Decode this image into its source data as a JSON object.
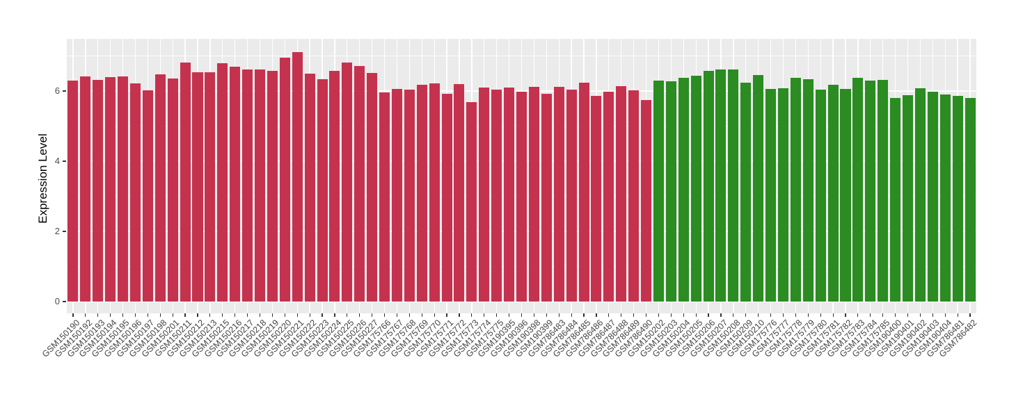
{
  "chart_data": {
    "type": "bar",
    "title": "",
    "xlabel": "",
    "ylabel": "Expression Level",
    "ylim": [
      -0.34,
      7.48
    ],
    "yticks": [
      0,
      2,
      4,
      6
    ],
    "minor_gridlines": [
      1,
      3,
      5,
      7
    ],
    "grid": true,
    "legend_position": "none",
    "panel_bg": "#EBEBEB",
    "grid_color": "#FFFFFF",
    "tick_mark_color": "#333333",
    "tick_label_color": "#444444",
    "axis_title_color": "#000000",
    "groups": [
      {
        "name": "group-1",
        "color": "#C5324E"
      },
      {
        "name": "group-2",
        "color": "#2A8C21"
      }
    ],
    "bars": [
      {
        "label": "GSM150190",
        "value": 6.29,
        "group": 0
      },
      {
        "label": "GSM150192",
        "value": 6.42,
        "group": 0
      },
      {
        "label": "GSM150193",
        "value": 6.32,
        "group": 0
      },
      {
        "label": "GSM150194",
        "value": 6.39,
        "group": 0
      },
      {
        "label": "GSM150195",
        "value": 6.42,
        "group": 0
      },
      {
        "label": "GSM150196",
        "value": 6.22,
        "group": 0
      },
      {
        "label": "GSM150197",
        "value": 6.02,
        "group": 0
      },
      {
        "label": "GSM150198",
        "value": 6.47,
        "group": 0
      },
      {
        "label": "GSM150201",
        "value": 6.35,
        "group": 0
      },
      {
        "label": "GSM150211",
        "value": 6.81,
        "group": 0
      },
      {
        "label": "GSM150212",
        "value": 6.54,
        "group": 0
      },
      {
        "label": "GSM150213",
        "value": 6.54,
        "group": 0
      },
      {
        "label": "GSM150215",
        "value": 6.79,
        "group": 0
      },
      {
        "label": "GSM150216",
        "value": 6.69,
        "group": 0
      },
      {
        "label": "GSM150217",
        "value": 6.61,
        "group": 0
      },
      {
        "label": "GSM150218",
        "value": 6.61,
        "group": 0
      },
      {
        "label": "GSM150219",
        "value": 6.57,
        "group": 0
      },
      {
        "label": "GSM150220",
        "value": 6.95,
        "group": 0
      },
      {
        "label": "GSM150221",
        "value": 7.11,
        "group": 0
      },
      {
        "label": "GSM150222",
        "value": 6.49,
        "group": 0
      },
      {
        "label": "GSM150223",
        "value": 6.33,
        "group": 0
      },
      {
        "label": "GSM150224",
        "value": 6.58,
        "group": 0
      },
      {
        "label": "GSM150225",
        "value": 6.81,
        "group": 0
      },
      {
        "label": "GSM150226",
        "value": 6.71,
        "group": 0
      },
      {
        "label": "GSM150227",
        "value": 6.51,
        "group": 0
      },
      {
        "label": "GSM175766",
        "value": 5.96,
        "group": 0
      },
      {
        "label": "GSM175767",
        "value": 6.05,
        "group": 0
      },
      {
        "label": "GSM175768",
        "value": 6.03,
        "group": 0
      },
      {
        "label": "GSM175769",
        "value": 6.17,
        "group": 0
      },
      {
        "label": "GSM175770",
        "value": 6.21,
        "group": 0
      },
      {
        "label": "GSM175771",
        "value": 5.93,
        "group": 0
      },
      {
        "label": "GSM175772",
        "value": 6.19,
        "group": 0
      },
      {
        "label": "GSM175773",
        "value": 5.69,
        "group": 0
      },
      {
        "label": "GSM175774",
        "value": 6.1,
        "group": 0
      },
      {
        "label": "GSM175775",
        "value": 6.04,
        "group": 0
      },
      {
        "label": "GSM190395",
        "value": 6.09,
        "group": 0
      },
      {
        "label": "GSM190396",
        "value": 5.99,
        "group": 0
      },
      {
        "label": "GSM190398",
        "value": 6.11,
        "group": 0
      },
      {
        "label": "GSM190399",
        "value": 5.93,
        "group": 0
      },
      {
        "label": "GSM786483",
        "value": 6.12,
        "group": 0
      },
      {
        "label": "GSM786484",
        "value": 6.03,
        "group": 0
      },
      {
        "label": "GSM786485",
        "value": 6.23,
        "group": 0
      },
      {
        "label": "GSM786486",
        "value": 5.87,
        "group": 0
      },
      {
        "label": "GSM786487",
        "value": 5.99,
        "group": 0
      },
      {
        "label": "GSM786488",
        "value": 6.14,
        "group": 0
      },
      {
        "label": "GSM786489",
        "value": 6.01,
        "group": 0
      },
      {
        "label": "GSM786490",
        "value": 5.74,
        "group": 0
      },
      {
        "label": "GSM150202",
        "value": 6.29,
        "group": 1
      },
      {
        "label": "GSM150203",
        "value": 6.27,
        "group": 1
      },
      {
        "label": "GSM150204",
        "value": 6.37,
        "group": 1
      },
      {
        "label": "GSM150205",
        "value": 6.44,
        "group": 1
      },
      {
        "label": "GSM150206",
        "value": 6.57,
        "group": 1
      },
      {
        "label": "GSM150207",
        "value": 6.62,
        "group": 1
      },
      {
        "label": "GSM150208",
        "value": 6.61,
        "group": 1
      },
      {
        "label": "GSM150209",
        "value": 6.24,
        "group": 1
      },
      {
        "label": "GSM150210",
        "value": 6.46,
        "group": 1
      },
      {
        "label": "GSM175776",
        "value": 6.05,
        "group": 1
      },
      {
        "label": "GSM175777",
        "value": 6.08,
        "group": 1
      },
      {
        "label": "GSM175778",
        "value": 6.37,
        "group": 1
      },
      {
        "label": "GSM175779",
        "value": 6.33,
        "group": 1
      },
      {
        "label": "GSM175780",
        "value": 6.03,
        "group": 1
      },
      {
        "label": "GSM175781",
        "value": 6.17,
        "group": 1
      },
      {
        "label": "GSM175782",
        "value": 6.06,
        "group": 1
      },
      {
        "label": "GSM175783",
        "value": 6.37,
        "group": 1
      },
      {
        "label": "GSM175784",
        "value": 6.29,
        "group": 1
      },
      {
        "label": "GSM175785",
        "value": 6.31,
        "group": 1
      },
      {
        "label": "GSM190400",
        "value": 5.81,
        "group": 1
      },
      {
        "label": "GSM190401",
        "value": 5.89,
        "group": 1
      },
      {
        "label": "GSM190402",
        "value": 6.08,
        "group": 1
      },
      {
        "label": "GSM190403",
        "value": 5.98,
        "group": 1
      },
      {
        "label": "GSM190404",
        "value": 5.9,
        "group": 1
      },
      {
        "label": "GSM786481",
        "value": 5.87,
        "group": 1
      },
      {
        "label": "GSM786482",
        "value": 5.81,
        "group": 1
      }
    ]
  }
}
